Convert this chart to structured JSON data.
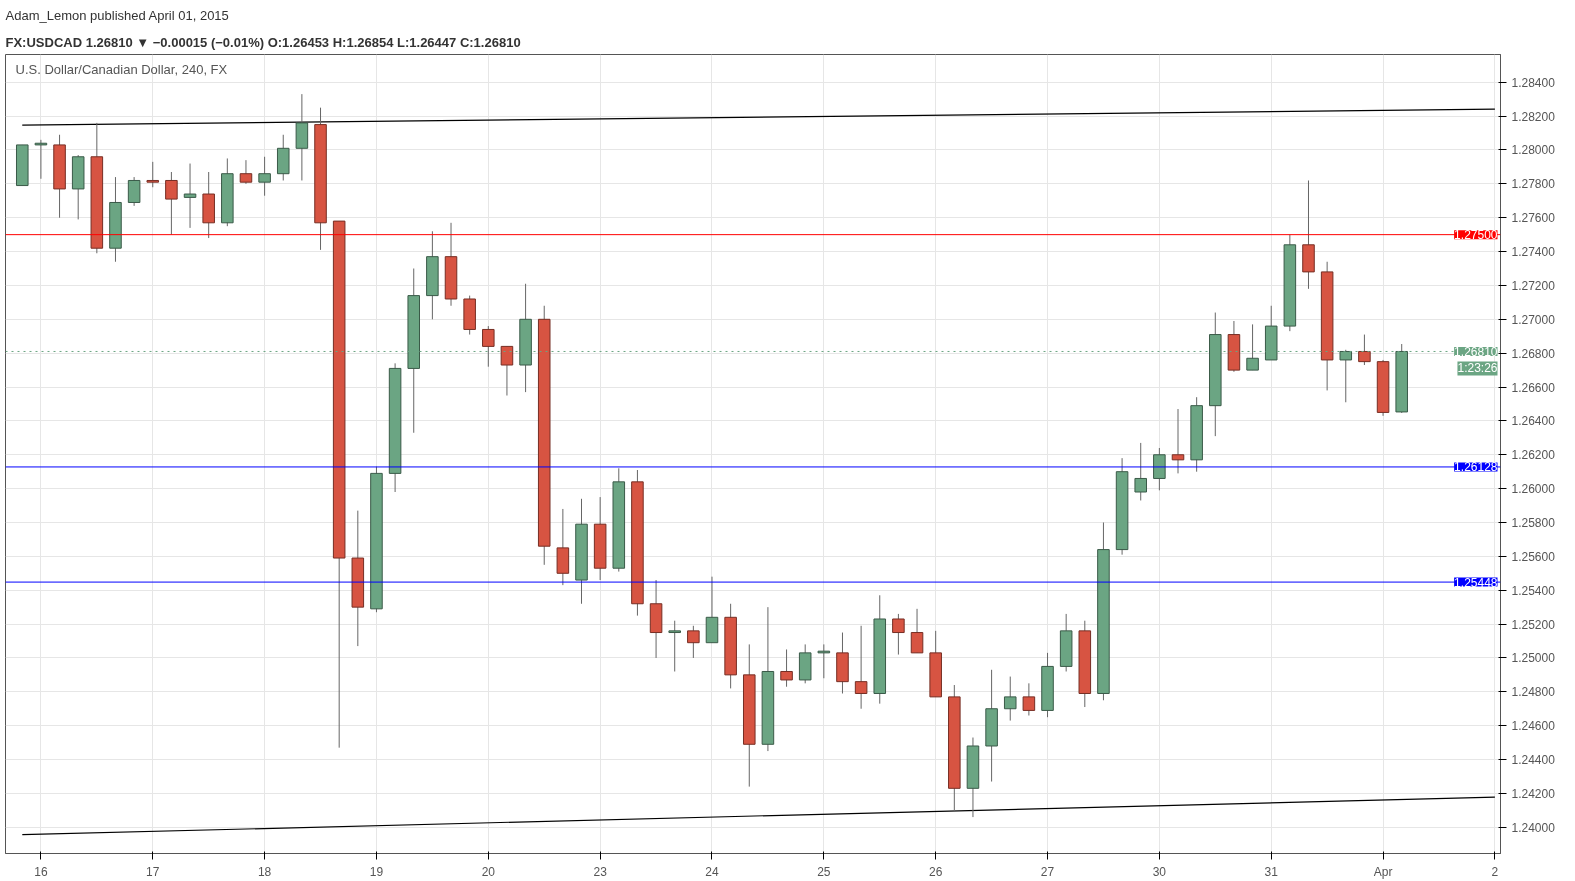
{
  "chart_data": {
    "type": "candlestick",
    "title": "U.S. Dollar/Canadian Dollar, 240, FX",
    "annotations": [
      "Adam_Lemon published April 01, 2015",
      "FX:USDCAD 1.26810 ▼ −0.00015 (−0.01%) O:1.26453 H:1.26854 L:1.26447 C:1.26810",
      "1:23:26"
    ],
    "categories": [
      null,
      "16",
      null,
      null,
      null,
      null,
      null,
      "17",
      null,
      null,
      null,
      null,
      null,
      "18",
      null,
      null,
      null,
      null,
      null,
      "19",
      null,
      null,
      null,
      null,
      null,
      "20",
      null,
      null,
      null,
      null,
      null,
      "23",
      null,
      null,
      null,
      null,
      null,
      "24",
      null,
      null,
      null,
      null,
      null,
      "25",
      null,
      null,
      null,
      null,
      null,
      "26",
      null,
      null,
      null,
      null,
      null,
      "27",
      null,
      null,
      null,
      null,
      null,
      "30",
      null,
      null,
      null,
      null,
      null,
      "31",
      null,
      null,
      null,
      null,
      null,
      "Apr",
      null,
      null,
      null,
      null,
      null,
      "2"
    ],
    "ohlc": [
      [
        1.2779,
        1.2803,
        1.2779,
        1.2803
      ],
      [
        1.2803,
        1.2806,
        1.2783,
        1.2804
      ],
      [
        1.2803,
        1.2809,
        1.276,
        1.2777
      ],
      [
        1.2777,
        1.2797,
        1.2759,
        1.2796
      ],
      [
        1.2796,
        1.2816,
        1.2739,
        1.2742
      ],
      [
        1.2742,
        1.2784,
        1.2734,
        1.2769
      ],
      [
        1.2769,
        1.2784,
        1.2767,
        1.2782
      ],
      [
        1.2782,
        1.2793,
        1.2778,
        1.2781
      ],
      [
        1.2782,
        1.2787,
        1.275,
        1.2771
      ],
      [
        1.2772,
        1.2792,
        1.2754,
        1.2774
      ],
      [
        1.2774,
        1.2787,
        1.2748,
        1.2757
      ],
      [
        1.2757,
        1.2795,
        1.2755,
        1.2786
      ],
      [
        1.2786,
        1.2794,
        1.278,
        1.2781
      ],
      [
        1.2781,
        1.2796,
        1.2773,
        1.2786
      ],
      [
        1.2786,
        1.2809,
        1.2782,
        1.2801
      ],
      [
        1.2801,
        1.2833,
        1.2782,
        1.2816
      ],
      [
        1.2815,
        1.2825,
        1.2741,
        1.2757
      ],
      [
        1.2758,
        1.2758,
        1.2447,
        1.2559
      ],
      [
        1.2559,
        1.2587,
        1.2507,
        1.253
      ],
      [
        1.2529,
        1.2613,
        1.2527,
        1.2609
      ],
      [
        1.2609,
        1.2674,
        1.2598,
        1.2671
      ],
      [
        1.2671,
        1.273,
        1.2633,
        1.2714
      ],
      [
        1.2714,
        1.2752,
        1.27,
        1.2737
      ],
      [
        1.2737,
        1.2757,
        1.2708,
        1.2712
      ],
      [
        1.2712,
        1.2714,
        1.2691,
        1.2694
      ],
      [
        1.2694,
        1.2696,
        1.2672,
        1.2684
      ],
      [
        1.2684,
        1.2684,
        1.2655,
        1.2673
      ],
      [
        1.2673,
        1.2721,
        1.2657,
        1.27
      ],
      [
        1.27,
        1.2708,
        1.2555,
        1.2566
      ],
      [
        1.2565,
        1.2588,
        1.2543,
        1.255
      ],
      [
        1.2546,
        1.2594,
        1.2532,
        1.2579
      ],
      [
        1.2579,
        1.2595,
        1.2546,
        1.2553
      ],
      [
        1.2553,
        1.2612,
        1.2551,
        1.2604
      ],
      [
        1.2604,
        1.2611,
        1.2525,
        1.2532
      ],
      [
        1.2532,
        1.2546,
        1.25,
        1.2515
      ],
      [
        1.2515,
        1.2522,
        1.2492,
        1.2516
      ],
      [
        1.2516,
        1.2519,
        1.25,
        1.2509
      ],
      [
        1.2509,
        1.2548,
        1.2509,
        1.2524
      ],
      [
        1.2524,
        1.2532,
        1.2482,
        1.249
      ],
      [
        1.249,
        1.2508,
        1.2424,
        1.2449
      ],
      [
        1.2449,
        1.253,
        1.2445,
        1.2492
      ],
      [
        1.2492,
        1.2505,
        1.2483,
        1.2487
      ],
      [
        1.2487,
        1.2508,
        1.2485,
        1.2503
      ],
      [
        1.2503,
        1.2508,
        1.2488,
        1.2504
      ],
      [
        1.2503,
        1.2515,
        1.2479,
        1.2486
      ],
      [
        1.2486,
        1.2519,
        1.247,
        1.2479
      ],
      [
        1.2479,
        1.2537,
        1.2473,
        1.2523
      ],
      [
        1.2523,
        1.2526,
        1.2502,
        1.2515
      ],
      [
        1.2515,
        1.2529,
        1.2503,
        1.2503
      ],
      [
        1.2503,
        1.2516,
        1.2477,
        1.2477
      ],
      [
        1.2477,
        1.2484,
        1.2409,
        1.2423
      ],
      [
        1.2423,
        1.2453,
        1.2406,
        1.2448
      ],
      [
        1.2448,
        1.2493,
        1.2427,
        1.247
      ],
      [
        1.247,
        1.2489,
        1.2463,
        1.2477
      ],
      [
        1.2477,
        1.2485,
        1.2466,
        1.2469
      ],
      [
        1.2469,
        1.2503,
        1.2465,
        1.2495
      ],
      [
        1.2495,
        1.2526,
        1.2492,
        1.2516
      ],
      [
        1.2516,
        1.2522,
        1.2471,
        1.2479
      ],
      [
        1.2479,
        1.258,
        1.2475,
        1.2564
      ],
      [
        1.2564,
        1.2618,
        1.2561,
        1.261
      ],
      [
        1.2598,
        1.2627,
        1.2593,
        1.2606
      ],
      [
        1.2606,
        1.2624,
        1.2599,
        1.262
      ],
      [
        1.262,
        1.2647,
        1.2609,
        1.2617
      ],
      [
        1.2617,
        1.2654,
        1.261,
        1.2649
      ],
      [
        1.2649,
        1.2704,
        1.2631,
        1.2691
      ],
      [
        1.2691,
        1.2699,
        1.2669,
        1.267
      ],
      [
        1.267,
        1.2697,
        1.267,
        1.2677
      ],
      [
        1.2676,
        1.2708,
        1.2676,
        1.2696
      ],
      [
        1.2696,
        1.275,
        1.2693,
        1.2744
      ],
      [
        1.2744,
        1.2782,
        1.2718,
        1.2728
      ],
      [
        1.2728,
        1.2734,
        1.2658,
        1.2676
      ],
      [
        1.2676,
        1.2682,
        1.2651,
        1.2681
      ],
      [
        1.2681,
        1.2691,
        1.2673,
        1.2675
      ],
      [
        1.2675,
        1.2676,
        1.2643,
        1.2645
      ],
      [
        1.26453,
        1.26854,
        1.26447,
        1.2681
      ],
      null,
      null,
      null,
      null,
      null
    ],
    "colors": [
      "#6ba583",
      "#6ba583",
      "#d75442",
      "#6ba583",
      "#d75442",
      "#6ba583",
      "#6ba583",
      "#d75442",
      "#d75442",
      "#6ba583",
      "#d75442",
      "#6ba583",
      "#d75442",
      "#6ba583",
      "#6ba583",
      "#6ba583",
      "#d75442",
      "#d75442",
      "#d75442",
      "#6ba583",
      "#6ba583",
      "#6ba583",
      "#6ba583",
      "#d75442",
      "#d75442",
      "#d75442",
      "#d75442",
      "#6ba583",
      "#d75442",
      "#d75442",
      "#6ba583",
      "#d75442",
      "#6ba583",
      "#d75442",
      "#d75442",
      "#6ba583",
      "#d75442",
      "#6ba583",
      "#d75442",
      "#d75442",
      "#6ba583",
      "#d75442",
      "#6ba583",
      "#6ba583",
      "#d75442",
      "#d75442",
      "#6ba583",
      "#d75442",
      "#d75442",
      "#d75442",
      "#d75442",
      "#6ba583",
      "#6ba583",
      "#6ba583",
      "#d75442",
      "#6ba583",
      "#6ba583",
      "#d75442",
      "#6ba583",
      "#6ba583",
      "#6ba583",
      "#6ba583",
      "#d75442",
      "#6ba583",
      "#6ba583",
      "#d75442",
      "#6ba583",
      "#6ba583",
      "#6ba583",
      "#d75442",
      "#d75442",
      "#6ba583",
      "#d75442",
      "#d75442",
      "#6ba583",
      null,
      null,
      null,
      null,
      null
    ],
    "series": [
      {
        "type": "line",
        "values": [
          1.28147,
          null,
          null,
          null,
          null,
          null,
          null,
          null,
          null,
          null,
          null,
          null,
          null,
          null,
          null,
          null,
          null,
          null,
          null,
          null,
          null,
          null,
          null,
          null,
          null,
          null,
          null,
          null,
          null,
          null,
          null,
          null,
          null,
          null,
          null,
          null,
          null,
          null,
          null,
          null,
          null,
          null,
          null,
          null,
          null,
          null,
          null,
          null,
          null,
          null,
          null,
          null,
          null,
          null,
          null,
          null,
          null,
          null,
          null,
          null,
          null,
          null,
          null,
          null,
          null,
          null,
          null,
          null,
          null,
          null,
          null,
          null,
          null,
          null,
          null,
          null,
          null,
          null,
          null,
          1.28241
        ],
        "color": "#000000"
      },
      {
        "type": "line",
        "values": [
          1.23956,
          null,
          null,
          null,
          null,
          null,
          null,
          null,
          null,
          null,
          null,
          null,
          null,
          null,
          null,
          null,
          null,
          null,
          null,
          null,
          null,
          null,
          null,
          null,
          null,
          null,
          null,
          null,
          null,
          null,
          null,
          null,
          null,
          null,
          null,
          null,
          null,
          null,
          null,
          null,
          null,
          null,
          null,
          null,
          null,
          null,
          null,
          null,
          null,
          null,
          null,
          null,
          null,
          null,
          null,
          null,
          null,
          null,
          null,
          null,
          null,
          null,
          null,
          null,
          null,
          null,
          null,
          null,
          null,
          null,
          null,
          null,
          null,
          null,
          null,
          null,
          null,
          null,
          null,
          1.24178
        ],
        "color": "#000000"
      }
    ],
    "ref_lines": [
      {
        "axis": "y",
        "value": 1.275,
        "label": "1.27500",
        "color": "#ff0000"
      },
      {
        "axis": "y",
        "value": 1.26128,
        "label": "1.26128",
        "color": "#0000ff"
      },
      {
        "axis": "y",
        "value": 1.25448,
        "label": "1.25448",
        "color": "#0000ff"
      },
      {
        "axis": "y",
        "value": 1.2681,
        "label": "1.26810",
        "color": "#6ba583",
        "line_style": "dotted"
      }
    ],
    "ylim": [
      1.23845,
      1.28564
    ],
    "yticks": [
      {
        "value": 1.24,
        "label": "1.24000"
      },
      {
        "value": 1.242,
        "label": "1.24200"
      },
      {
        "value": 1.244,
        "label": "1.24400"
      },
      {
        "value": 1.246,
        "label": "1.24600"
      },
      {
        "value": 1.248,
        "label": "1.24800"
      },
      {
        "value": 1.25,
        "label": "1.25000"
      },
      {
        "value": 1.252,
        "label": "1.25200"
      },
      {
        "value": 1.254,
        "label": "1.25400"
      },
      {
        "value": 1.256,
        "label": "1.25600"
      },
      {
        "value": 1.258,
        "label": "1.25800"
      },
      {
        "value": 1.26,
        "label": "1.26000"
      },
      {
        "value": 1.262,
        "label": "1.26200"
      },
      {
        "value": 1.264,
        "label": "1.26400"
      },
      {
        "value": 1.266,
        "label": "1.26600"
      },
      {
        "value": 1.268,
        "label": "1.26800"
      },
      {
        "value": 1.27,
        "label": "1.27000"
      },
      {
        "value": 1.272,
        "label": "1.27200"
      },
      {
        "value": 1.274,
        "label": "1.27400"
      },
      {
        "value": 1.276,
        "label": "1.27600"
      },
      {
        "value": 1.278,
        "label": "1.27800"
      },
      {
        "value": 1.28,
        "label": "1.28000"
      },
      {
        "value": 1.282,
        "label": "1.28200"
      },
      {
        "value": 1.284,
        "label": "1.28400"
      }
    ],
    "grid": true
  }
}
